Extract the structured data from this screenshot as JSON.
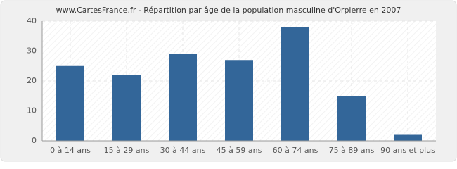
{
  "chart_data": {
    "type": "bar",
    "title": "www.CartesFrance.fr - Répartition par âge de la population masculine d'Orpierre en 2007",
    "categories": [
      "0 à 14 ans",
      "15 à 29 ans",
      "30 à 44 ans",
      "45 à 59 ans",
      "60 à 74 ans",
      "75 à 89 ans",
      "90 ans et plus"
    ],
    "values": [
      25,
      22,
      29,
      27,
      38,
      15,
      2
    ],
    "color": "#336699",
    "ylim": [
      0,
      40
    ],
    "yticks": [
      0,
      10,
      20,
      30,
      40
    ],
    "grid": true
  }
}
